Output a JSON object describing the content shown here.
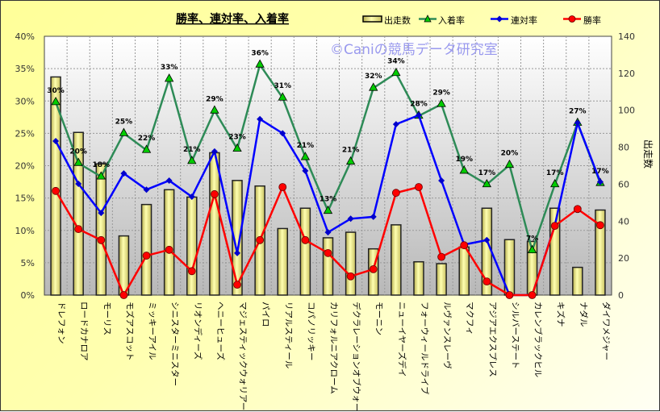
{
  "chart_data": {
    "type": "bar+line",
    "title": "勝率、連対率、入着率",
    "watermark": "©Caniの競馬データ研究室",
    "ylabel_left": "",
    "ylabel_right": "出走数",
    "ylim_left": [
      0,
      40
    ],
    "ylim_right": [
      0,
      140
    ],
    "yticks_left": [
      "0%",
      "5%",
      "10%",
      "15%",
      "20%",
      "25%",
      "30%",
      "35%",
      "40%"
    ],
    "yticks_right": [
      "0",
      "20",
      "40",
      "60",
      "80",
      "100",
      "120",
      "140"
    ],
    "legend_position": "top-right",
    "grid": true,
    "categories": [
      "ドレフォン",
      "ロードカナロア",
      "モーリス",
      "モズアスコット",
      "ミッキーアイル",
      "シニスターミニスター",
      "リオンディーズ",
      "ヘニーヒューズ",
      "マジェスティックウォリアー",
      "パイロ",
      "リアルスティール",
      "コパノリッキー",
      "カリフォルニアクローム",
      "デクラレーションオブウォー",
      "モーニン",
      "ニューイヤーズデイ",
      "フォーウィールドライブ",
      "ルヴァンスレーヴ",
      "マクフィ",
      "アジアエクスプレス",
      "シルバーステート",
      "カレンブラックヒル",
      "キズナ",
      "ナダル",
      "ダイワメジャー"
    ],
    "series": [
      {
        "name": "出走数",
        "type": "bar",
        "axis": "right",
        "color": "#f0ec90",
        "values": [
          118,
          88,
          71,
          32,
          49,
          57,
          53,
          77,
          62,
          59,
          36,
          47,
          31,
          34,
          25,
          38,
          18,
          17,
          26,
          47,
          30,
          29,
          47,
          15,
          46
        ]
      },
      {
        "name": "入着率",
        "type": "line",
        "axis": "left",
        "color": "#2e8b57",
        "marker": "#00cc00",
        "values": [
          29.8,
          20.4,
          18.3,
          25.0,
          22.4,
          33.4,
          20.7,
          28.5,
          22.6,
          35.6,
          30.5,
          21.3,
          13.0,
          20.6,
          32.0,
          34.3,
          27.7,
          29.5,
          19.2,
          17.1,
          20.1,
          6.9,
          17.1,
          26.6,
          17.3
        ],
        "data_labels": [
          "30%",
          "20%",
          "18%",
          "25%",
          "22%",
          "33%",
          "21%",
          "29%",
          "23%",
          "36%",
          "31%",
          "21%",
          "13%",
          "21%",
          "32%",
          "34%",
          "28%",
          "29%",
          "19%",
          "17%",
          "20%",
          "7%",
          "17%",
          "27%",
          "17%"
        ]
      },
      {
        "name": "連対率",
        "type": "line",
        "axis": "left",
        "color": "#0000ff",
        "values": [
          23.8,
          17.2,
          12.7,
          18.8,
          16.3,
          17.7,
          15.2,
          22.2,
          6.5,
          27.2,
          25.0,
          19.2,
          9.7,
          11.8,
          12.1,
          26.4,
          27.8,
          17.7,
          7.8,
          8.5,
          0,
          0,
          10.8,
          26.6,
          17.5
        ]
      },
      {
        "name": "勝率",
        "type": "line",
        "axis": "left",
        "color": "#ff0000",
        "values": [
          16.1,
          10.2,
          8.5,
          0,
          6.1,
          7.0,
          3.7,
          15.6,
          1.6,
          8.5,
          16.7,
          8.5,
          6.5,
          2.9,
          4.0,
          15.8,
          16.7,
          5.9,
          7.7,
          2.1,
          0,
          0,
          10.7,
          13.3,
          10.8
        ]
      }
    ]
  }
}
